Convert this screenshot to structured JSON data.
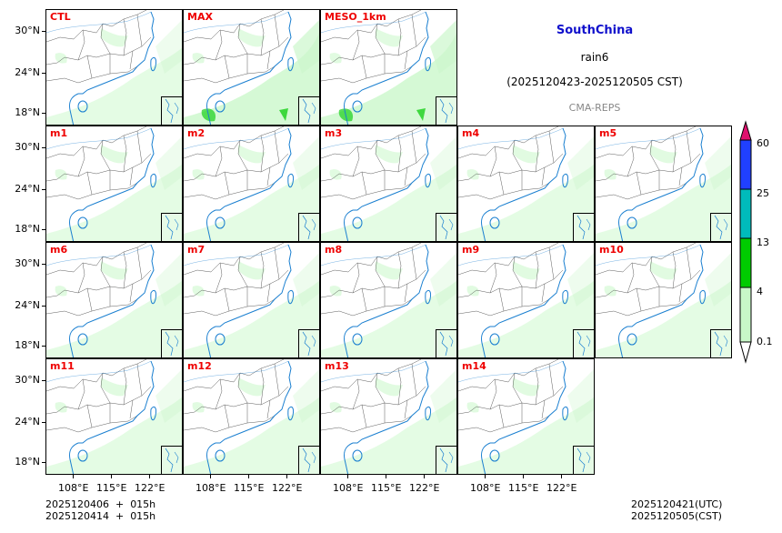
{
  "title": {
    "region": "SouthChina",
    "variable": "rain6",
    "period": "(2025120423-2025120505 CST)",
    "source": "CMA-REPS"
  },
  "panels": [
    {
      "label": "CTL",
      "row": 0,
      "col": 0
    },
    {
      "label": "MAX",
      "row": 0,
      "col": 1
    },
    {
      "label": "MESO_1km",
      "row": 0,
      "col": 2
    },
    {
      "label": "m1",
      "row": 1,
      "col": 0
    },
    {
      "label": "m2",
      "row": 1,
      "col": 1
    },
    {
      "label": "m3",
      "row": 1,
      "col": 2
    },
    {
      "label": "m4",
      "row": 1,
      "col": 3
    },
    {
      "label": "m5",
      "row": 1,
      "col": 4
    },
    {
      "label": "m6",
      "row": 2,
      "col": 0
    },
    {
      "label": "m7",
      "row": 2,
      "col": 1
    },
    {
      "label": "m8",
      "row": 2,
      "col": 2
    },
    {
      "label": "m9",
      "row": 2,
      "col": 3
    },
    {
      "label": "m10",
      "row": 2,
      "col": 4
    },
    {
      "label": "m11",
      "row": 3,
      "col": 0
    },
    {
      "label": "m12",
      "row": 3,
      "col": 1
    },
    {
      "label": "m13",
      "row": 3,
      "col": 2
    },
    {
      "label": "m14",
      "row": 3,
      "col": 3
    }
  ],
  "axes": {
    "y_ticks": [
      "30°N",
      "24°N",
      "18°N"
    ],
    "x_ticks": [
      "108°E",
      "115°E",
      "122°E"
    ]
  },
  "colorbar": {
    "levels": [
      "0.1",
      "4",
      "13",
      "25",
      "60"
    ],
    "colors": [
      "#c8f7c8",
      "#00cc00",
      "#00bbbb",
      "#2040ff"
    ],
    "over_color": "#e0106e",
    "under_color": "#ffffff"
  },
  "footer": {
    "init_line1": "2025120406  +  015h",
    "init_line2": "2025120414  +  015h",
    "valid_utc": "2025120421(UTC)",
    "valid_cst": "2025120505(CST)"
  }
}
